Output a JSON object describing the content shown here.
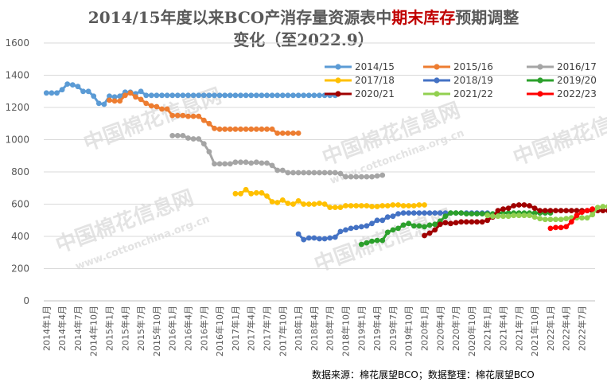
{
  "title": {
    "part1": "2014/15年度以来BCO产消存量资源表中",
    "highlight": "期末库存",
    "part2": "预期调整",
    "line2": "变化（至2022.9）"
  },
  "source_note": "数据来源：棉花展望BCO；数据整理：棉花展望BCO",
  "watermark": {
    "cn": "中国棉花信息网",
    "en": "www.cottonchina.org.cn"
  },
  "chart_data": {
    "type": "line",
    "ylim": [
      0,
      1600
    ],
    "yticks": [
      0,
      200,
      400,
      600,
      800,
      1000,
      1200,
      1400,
      1600
    ],
    "x_months": [
      "2014年1月",
      "2014年2月",
      "2014年3月",
      "2014年4月",
      "2014年5月",
      "2014年6月",
      "2014年7月",
      "2014年8月",
      "2014年9月",
      "2014年10月",
      "2014年11月",
      "2014年12月",
      "2015年1月",
      "2015年2月",
      "2015年3月",
      "2015年4月",
      "2015年5月",
      "2015年6月",
      "2015年7月",
      "2015年8月",
      "2015年9月",
      "2015年10月",
      "2015年11月",
      "2015年12月",
      "2016年1月",
      "2016年2月",
      "2016年3月",
      "2016年4月",
      "2016年5月",
      "2016年6月",
      "2016年7月",
      "2016年8月",
      "2016年9月",
      "2016年10月",
      "2016年11月",
      "2016年12月",
      "2017年1月",
      "2017年2月",
      "2017年3月",
      "2017年4月",
      "2017年5月",
      "2017年6月",
      "2017年7月",
      "2017年8月",
      "2017年9月",
      "2017年10月",
      "2017年11月",
      "2017年12月",
      "2018年1月",
      "2018年2月",
      "2018年3月",
      "2018年4月",
      "2018年5月",
      "2018年6月",
      "2018年7月",
      "2018年8月",
      "2018年9月",
      "2018年10月",
      "2018年11月",
      "2018年12月",
      "2019年1月",
      "2019年2月",
      "2019年3月",
      "2019年4月",
      "2019年5月",
      "2019年6月",
      "2019年7月",
      "2019年8月",
      "2019年9月",
      "2019年10月",
      "2019年11月",
      "2019年12月",
      "2020年1月",
      "2020年2月",
      "2020年3月",
      "2020年4月",
      "2020年5月",
      "2020年6月",
      "2020年7月",
      "2020年8月",
      "2020年9月",
      "2020年10月",
      "2020年11月",
      "2020年12月",
      "2021年1月",
      "2021年2月",
      "2021年3月",
      "2021年4月",
      "2021年5月",
      "2021年6月",
      "2021年7月",
      "2021年8月",
      "2021年9月",
      "2021年10月",
      "2021年11月",
      "2021年12月",
      "2022年1月",
      "2022年2月",
      "2022年3月",
      "2022年4月",
      "2022年5月",
      "2022年6月",
      "2022年7月",
      "2022年8月",
      "2022年9月"
    ],
    "x_tick_labels": [
      "2014年1月",
      "2014年4月",
      "2014年7月",
      "2014年10月",
      "2015年1月",
      "2015年4月",
      "2015年7月",
      "2015年10月",
      "2016年1月",
      "2016年4月",
      "2016年7月",
      "2016年10月",
      "2017年1月",
      "2017年4月",
      "2017年7月",
      "2017年10月",
      "2018年1月",
      "2018年4月",
      "2018年7月",
      "2018年10月",
      "2019年1月",
      "2019年4月",
      "2019年7月",
      "2019年10月",
      "2020年1月",
      "2020年4月",
      "2020年7月",
      "2020年10月",
      "2021年1月",
      "2021年4月",
      "2021年7月",
      "2021年10月",
      "2022年1月",
      "2022年4月",
      "2022年7月"
    ],
    "series": [
      {
        "name": "2014/15",
        "color": "#5b9bd5",
        "start": 0,
        "values": [
          1290,
          1290,
          1290,
          1310,
          1345,
          1340,
          1330,
          1300,
          1300,
          1270,
          1225,
          1220,
          1270,
          1265,
          1270,
          1295,
          1295,
          1285,
          1300,
          1275,
          1275,
          1275,
          1275,
          1275,
          1275,
          1275,
          1275,
          1275,
          1275,
          1275,
          1275,
          1275,
          1275,
          1275,
          1275,
          1275,
          1275,
          1275,
          1275,
          1275,
          1275,
          1275,
          1275,
          1275,
          1275,
          1275,
          1275,
          1275,
          1275,
          1275,
          1275,
          1275,
          1275,
          1275,
          1275,
          1275
        ]
      },
      {
        "name": "2015/16",
        "color": "#ed7d31",
        "start": 12,
        "values": [
          1245,
          1240,
          1240,
          1275,
          1290,
          1265,
          1250,
          1225,
          1210,
          1205,
          1190,
          1190,
          1150,
          1150,
          1150,
          1145,
          1145,
          1145,
          1120,
          1100,
          1070,
          1065,
          1065,
          1065,
          1065,
          1065,
          1065,
          1065,
          1065,
          1065,
          1065,
          1065,
          1040,
          1040,
          1040,
          1040,
          1040
        ]
      },
      {
        "name": "2016/17",
        "color": "#a5a5a5",
        "start": 24,
        "values": [
          1025,
          1025,
          1025,
          1010,
          1005,
          1005,
          975,
          925,
          850,
          850,
          850,
          850,
          860,
          860,
          860,
          855,
          860,
          855,
          855,
          840,
          810,
          810,
          795,
          795,
          795,
          795,
          795,
          795,
          795,
          795,
          795,
          795,
          790,
          770,
          770,
          770,
          770,
          770,
          770,
          775,
          780
        ]
      },
      {
        "name": "2017/18",
        "color": "#ffc000",
        "start": 36,
        "values": [
          665,
          665,
          690,
          665,
          670,
          670,
          650,
          615,
          610,
          625,
          605,
          600,
          620,
          600,
          600,
          600,
          605,
          600,
          580,
          580,
          580,
          590,
          590,
          590,
          590,
          590,
          585,
          585,
          590,
          590,
          595,
          595,
          590,
          590,
          590,
          595,
          595
        ]
      },
      {
        "name": "2018/19",
        "color": "#4472c4",
        "start": 48,
        "values": [
          415,
          380,
          390,
          390,
          385,
          385,
          390,
          395,
          430,
          440,
          450,
          455,
          460,
          465,
          480,
          500,
          500,
          520,
          525,
          540,
          545,
          545,
          545,
          545,
          545,
          545,
          545,
          545,
          545,
          545,
          545,
          545,
          545,
          545,
          545,
          545,
          545
        ]
      },
      {
        "name": "2019/20",
        "color": "#2ca02c",
        "start": 60,
        "values": [
          350,
          360,
          370,
          375,
          375,
          425,
          440,
          450,
          470,
          480,
          465,
          465,
          460,
          470,
          475,
          495,
          525,
          545,
          545,
          545,
          540,
          540,
          540,
          540,
          540,
          540,
          545,
          545,
          545,
          545,
          545,
          545,
          545,
          545,
          545,
          545,
          545
        ]
      },
      {
        "name": "2020/21",
        "color": "#a00000",
        "start": 72,
        "values": [
          405,
          420,
          440,
          475,
          485,
          480,
          485,
          490,
          490,
          490,
          490,
          490,
          500,
          520,
          560,
          570,
          575,
          590,
          595,
          595,
          590,
          575,
          560,
          560,
          560,
          560,
          560,
          560,
          560,
          560,
          560,
          560,
          560,
          560,
          560,
          560,
          560
        ]
      },
      {
        "name": "2021/22",
        "color": "#92d050",
        "start": 84,
        "values": [
          530,
          525,
          525,
          525,
          525,
          530,
          530,
          530,
          530,
          520,
          510,
          505,
          505,
          505,
          505,
          510,
          515,
          515,
          515,
          515,
          535,
          580,
          585,
          585,
          585
        ]
      },
      {
        "name": "2022/23",
        "color": "#ff0000",
        "start": 96,
        "values": [
          450,
          455,
          455,
          460,
          490,
          530,
          550,
          560,
          570
        ]
      }
    ],
    "legend_placement": "top-right",
    "grid": "horizontal"
  }
}
